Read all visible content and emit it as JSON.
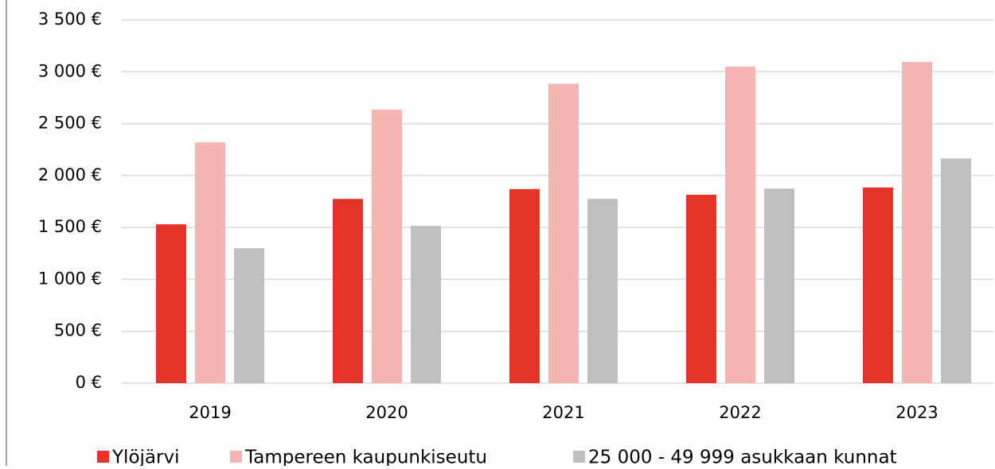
{
  "chart_data": {
    "type": "bar",
    "categories": [
      "2019",
      "2020",
      "2021",
      "2022",
      "2023"
    ],
    "series": [
      {
        "name": "Ylöjärvi",
        "color": "#e6332a",
        "values": [
          1530,
          1775,
          1870,
          1815,
          1885
        ]
      },
      {
        "name": "Tampereen kaupunkiseutu",
        "color": "#f5b5b3",
        "values": [
          2320,
          2635,
          2885,
          3050,
          3095
        ]
      },
      {
        "name": "25 000 - 49 999 asukkaan kunnat",
        "color": "#bfbfbf",
        "values": [
          1300,
          1515,
          1775,
          1875,
          2165
        ]
      }
    ],
    "ylim": [
      0,
      3500
    ],
    "yticks": [
      {
        "value": 0,
        "label": "0 €"
      },
      {
        "value": 500,
        "label": "500 €"
      },
      {
        "value": 1000,
        "label": "1 000 €"
      },
      {
        "value": 1500,
        "label": "1 500 €"
      },
      {
        "value": 2000,
        "label": "2 000 €"
      },
      {
        "value": 2500,
        "label": "2 500 €"
      },
      {
        "value": 3000,
        "label": "3 000 €"
      },
      {
        "value": 3500,
        "label": "3 500 €"
      }
    ],
    "grid": true,
    "legend": "bottom"
  }
}
